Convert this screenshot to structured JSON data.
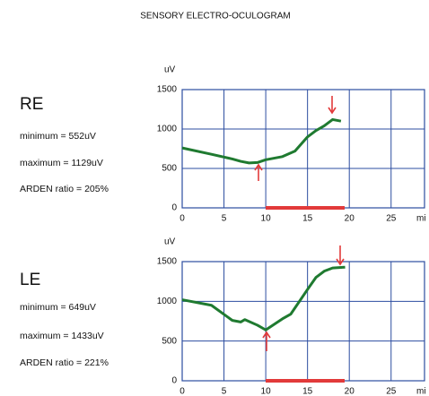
{
  "title": "SENSORY ELECTRO-OCULOGRAM",
  "chart_data": [
    {
      "type": "line",
      "label": "RE",
      "annotations": [
        "minimum = 552uV",
        "maximum = 1129uV",
        "ARDEN ratio = 205%"
      ],
      "y_label": "uV",
      "x_label": "mi",
      "x": [
        0,
        3.5,
        6,
        7,
        8,
        9,
        10,
        12,
        13.5,
        15,
        16,
        17,
        18,
        19
      ],
      "series": [
        {
          "name": "RE",
          "color": "#1f7a30",
          "values": [
            760,
            680,
            620,
            590,
            570,
            575,
            610,
            650,
            720,
            900,
            980,
            1040,
            1120,
            1100
          ]
        }
      ],
      "xlim": [
        0,
        29
      ],
      "xticks": [
        0,
        5,
        10,
        15,
        20,
        25
      ],
      "ylim": [
        0,
        1500
      ],
      "yticks": [
        0,
        500,
        1000,
        1500
      ],
      "grid": true
    },
    {
      "type": "line",
      "label": "LE",
      "annotations": [
        "minimum = 649uV",
        "maximum = 1433uV",
        "ARDEN ratio = 221%"
      ],
      "y_label": "uV",
      "x_label": "mi",
      "x": [
        0,
        3.5,
        6,
        7,
        7.5,
        9,
        10,
        12,
        13,
        15,
        16,
        17,
        18,
        19.5
      ],
      "series": [
        {
          "name": "LE",
          "color": "#1f7a30",
          "values": [
            1020,
            950,
            760,
            740,
            770,
            700,
            640,
            780,
            840,
            1150,
            1300,
            1380,
            1420,
            1430
          ]
        }
      ],
      "xlim": [
        0,
        29
      ],
      "xticks": [
        0,
        5,
        10,
        15,
        20,
        25
      ],
      "ylim": [
        0,
        1500
      ],
      "yticks": [
        0,
        500,
        1000,
        1500
      ],
      "grid": true
    }
  ]
}
